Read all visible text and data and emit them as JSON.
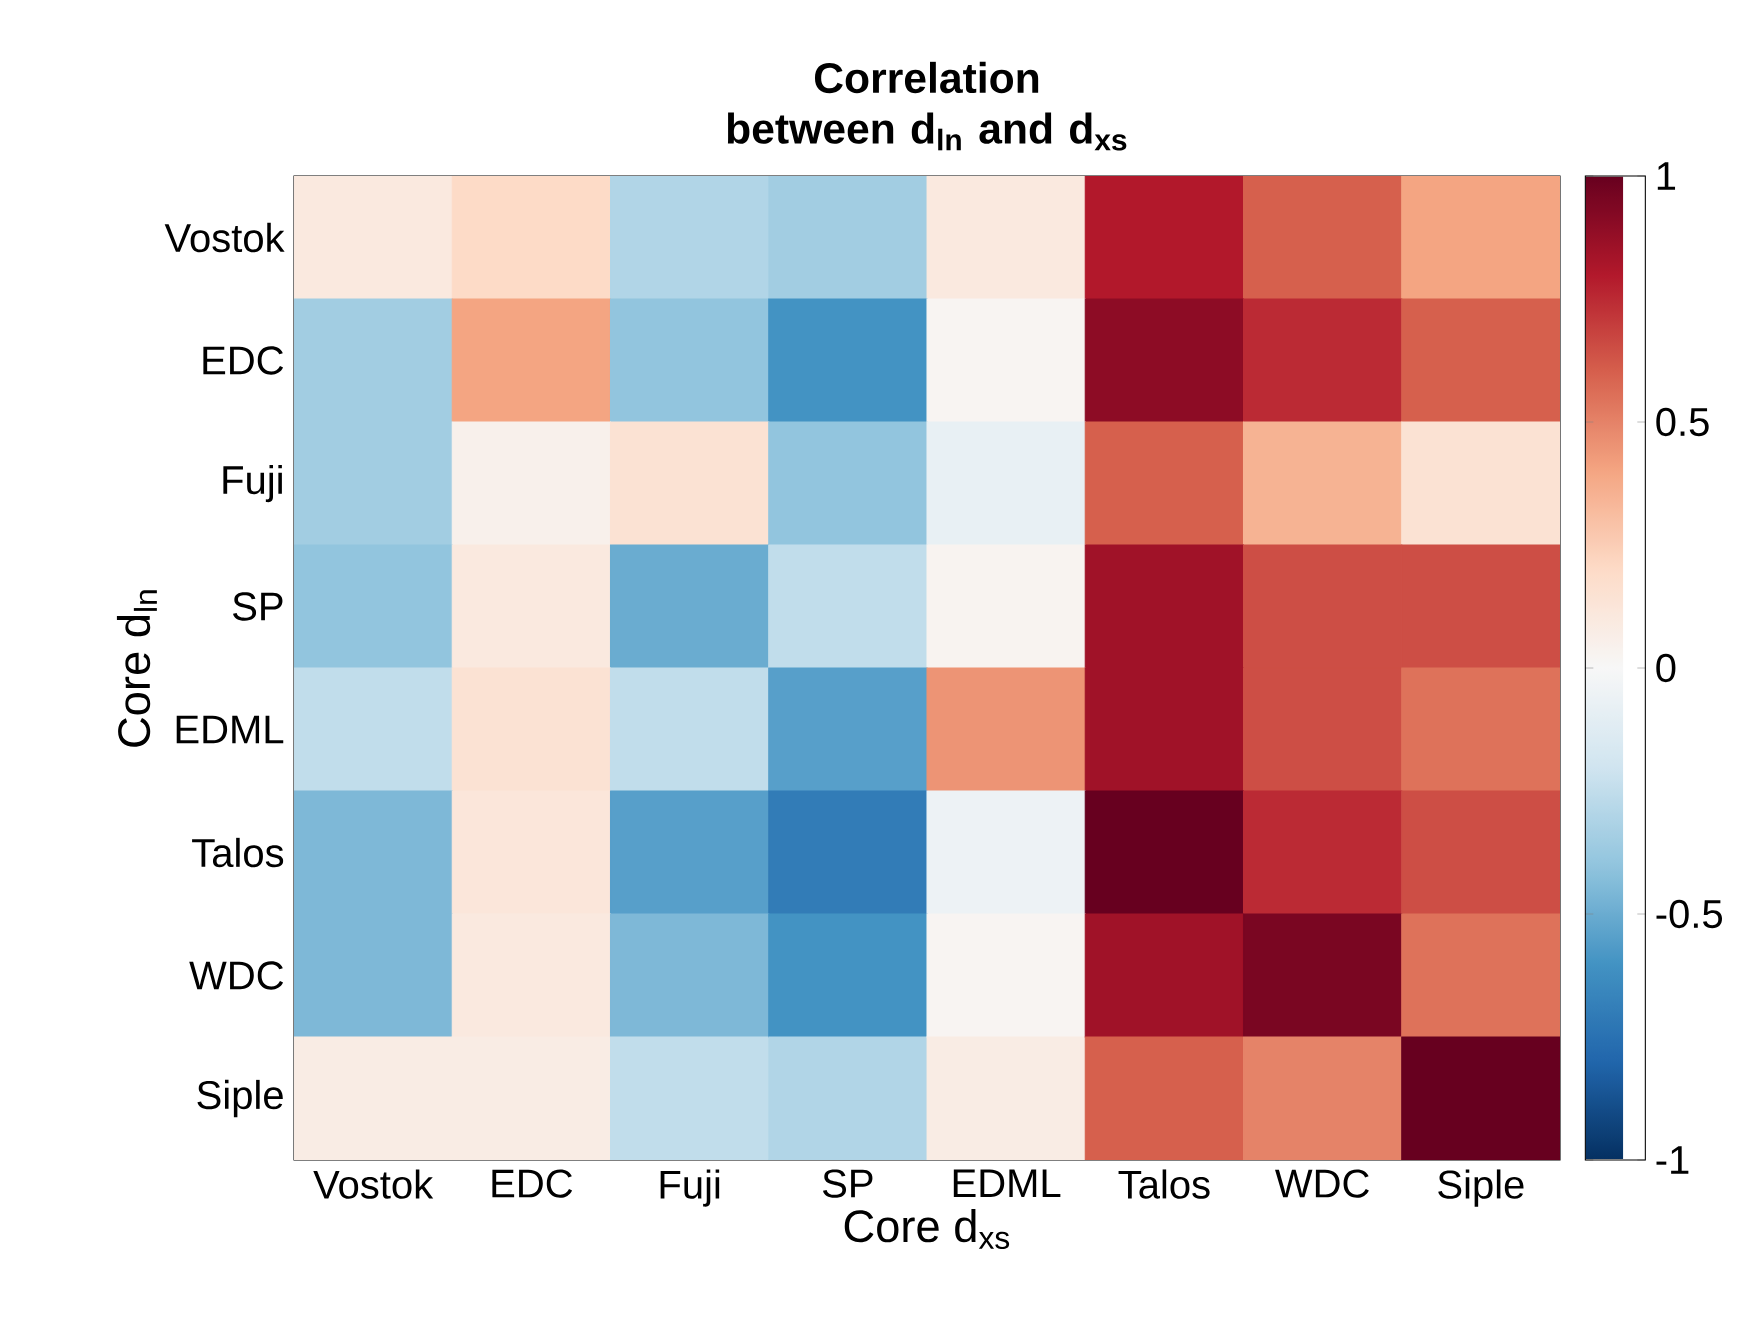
{
  "chart_data": {
    "type": "heatmap",
    "title": "Correlation between d$_{ln}$ and d$_{xs}$",
    "xlabel": "Core d$_{xs}$",
    "ylabel": "Core d$_{ln}$",
    "categories": [
      "Vostok",
      "EDC",
      "Fuji",
      "SP",
      "EDML",
      "Talos",
      "WDC",
      "Siple"
    ],
    "y_categories": [
      "Vostok",
      "EDC",
      "Fuji",
      "SP",
      "EDML",
      "Talos",
      "WDC",
      "Siple"
    ],
    "cells": [
      [
        0.1,
        0.2,
        -0.3,
        -0.35,
        0.1,
        0.8,
        0.6,
        0.4
      ],
      [
        -0.35,
        0.4,
        -0.4,
        -0.6,
        0.02,
        0.9,
        0.75,
        0.6
      ],
      [
        -0.35,
        0.05,
        0.15,
        -0.4,
        -0.08,
        0.6,
        0.35,
        0.15
      ],
      [
        -0.4,
        0.1,
        -0.5,
        -0.25,
        0.03,
        0.85,
        0.65,
        0.65
      ],
      [
        -0.25,
        0.15,
        -0.25,
        -0.55,
        0.45,
        0.85,
        0.65,
        0.55
      ],
      [
        -0.45,
        0.12,
        -0.55,
        -0.7,
        -0.05,
        1.0,
        0.75,
        0.65
      ],
      [
        -0.45,
        0.1,
        -0.45,
        -0.6,
        0.02,
        0.85,
        0.95,
        0.55
      ],
      [
        0.08,
        0.08,
        -0.25,
        -0.3,
        0.08,
        0.6,
        0.5,
        1.0
      ]
    ],
    "clim": [
      -1,
      1
    ],
    "cticks": [
      -1,
      -0.5,
      0,
      0.5,
      1
    ]
  }
}
